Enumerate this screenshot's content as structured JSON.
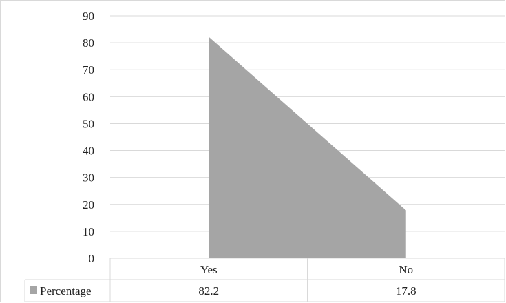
{
  "chart_data": {
    "type": "area",
    "categories": [
      "Yes",
      "No"
    ],
    "series": [
      {
        "name": "Percentage",
        "values": [
          82.2,
          17.8
        ],
        "color": "#a5a5a5"
      }
    ],
    "ylim": [
      0,
      90
    ],
    "yticks": [
      0,
      10,
      20,
      30,
      40,
      50,
      60,
      70,
      80,
      90
    ],
    "grid": true,
    "legend": "data-table",
    "data_table": {
      "row_label": "Percentage",
      "values": [
        "82.2",
        "17.8"
      ]
    }
  }
}
